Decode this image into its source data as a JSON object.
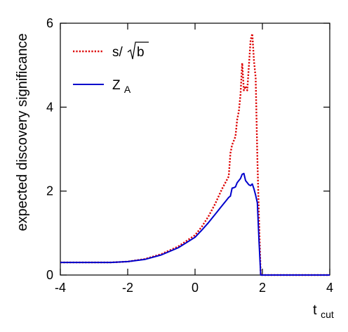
{
  "chart_data": {
    "type": "line",
    "xlabel": "t",
    "xlabel_sub": "cut",
    "ylabel": "expected discovery significance",
    "xlim": [
      -4,
      4
    ],
    "ylim": [
      0,
      6
    ],
    "x_ticks": [
      -4,
      -2,
      0,
      2,
      4
    ],
    "y_ticks": [
      0,
      2,
      4,
      6
    ],
    "x_tick_labels": [
      "-4",
      "-2",
      "0",
      "2",
      "4"
    ],
    "y_tick_labels": [
      "0",
      "2",
      "4",
      "6"
    ],
    "grid": false,
    "legend_position": "top-left",
    "series": [
      {
        "name": "s/√b",
        "legend_text": "s/",
        "legend_radicand": "b",
        "color": "#dd0000",
        "style": "dotted",
        "x": [
          -4.0,
          -3.0,
          -2.5,
          -2.0,
          -1.5,
          -1.0,
          -0.5,
          0.0,
          0.2,
          0.4,
          0.6,
          0.8,
          0.9,
          1.0,
          1.05,
          1.1,
          1.15,
          1.2,
          1.25,
          1.3,
          1.35,
          1.4,
          1.45,
          1.5,
          1.55,
          1.6,
          1.65,
          1.7,
          1.75,
          1.8,
          1.85,
          1.9,
          1.95,
          2.0,
          2.5,
          3.0,
          4.0
        ],
        "values": [
          0.3,
          0.3,
          0.3,
          0.32,
          0.38,
          0.5,
          0.68,
          0.95,
          1.15,
          1.4,
          1.7,
          2.05,
          2.2,
          2.35,
          2.9,
          3.1,
          3.2,
          3.3,
          3.7,
          3.9,
          4.3,
          5.05,
          4.4,
          4.5,
          4.4,
          5.0,
          5.6,
          5.75,
          5.1,
          4.7,
          2.8,
          1.3,
          0.0,
          0.0,
          0.0,
          0.0,
          0.0
        ]
      },
      {
        "name": "Z",
        "legend_text": "Z",
        "legend_sub": "A",
        "color": "#0000cc",
        "style": "solid",
        "x": [
          -4.0,
          -3.0,
          -2.5,
          -2.0,
          -1.5,
          -1.0,
          -0.5,
          0.0,
          0.2,
          0.4,
          0.6,
          0.8,
          0.9,
          1.0,
          1.05,
          1.1,
          1.15,
          1.2,
          1.25,
          1.3,
          1.35,
          1.4,
          1.45,
          1.5,
          1.55,
          1.6,
          1.65,
          1.7,
          1.75,
          1.8,
          1.85,
          1.9,
          1.95,
          2.0,
          2.5,
          3.0,
          4.0
        ],
        "values": [
          0.3,
          0.3,
          0.3,
          0.32,
          0.37,
          0.48,
          0.65,
          0.9,
          1.07,
          1.25,
          1.45,
          1.65,
          1.75,
          1.85,
          1.88,
          2.07,
          2.08,
          2.1,
          2.2,
          2.25,
          2.3,
          2.4,
          2.42,
          2.25,
          2.2,
          2.15,
          2.13,
          2.17,
          2.05,
          1.9,
          1.72,
          0.8,
          0.0,
          0.0,
          0.0,
          0.0,
          0.0
        ]
      }
    ]
  }
}
